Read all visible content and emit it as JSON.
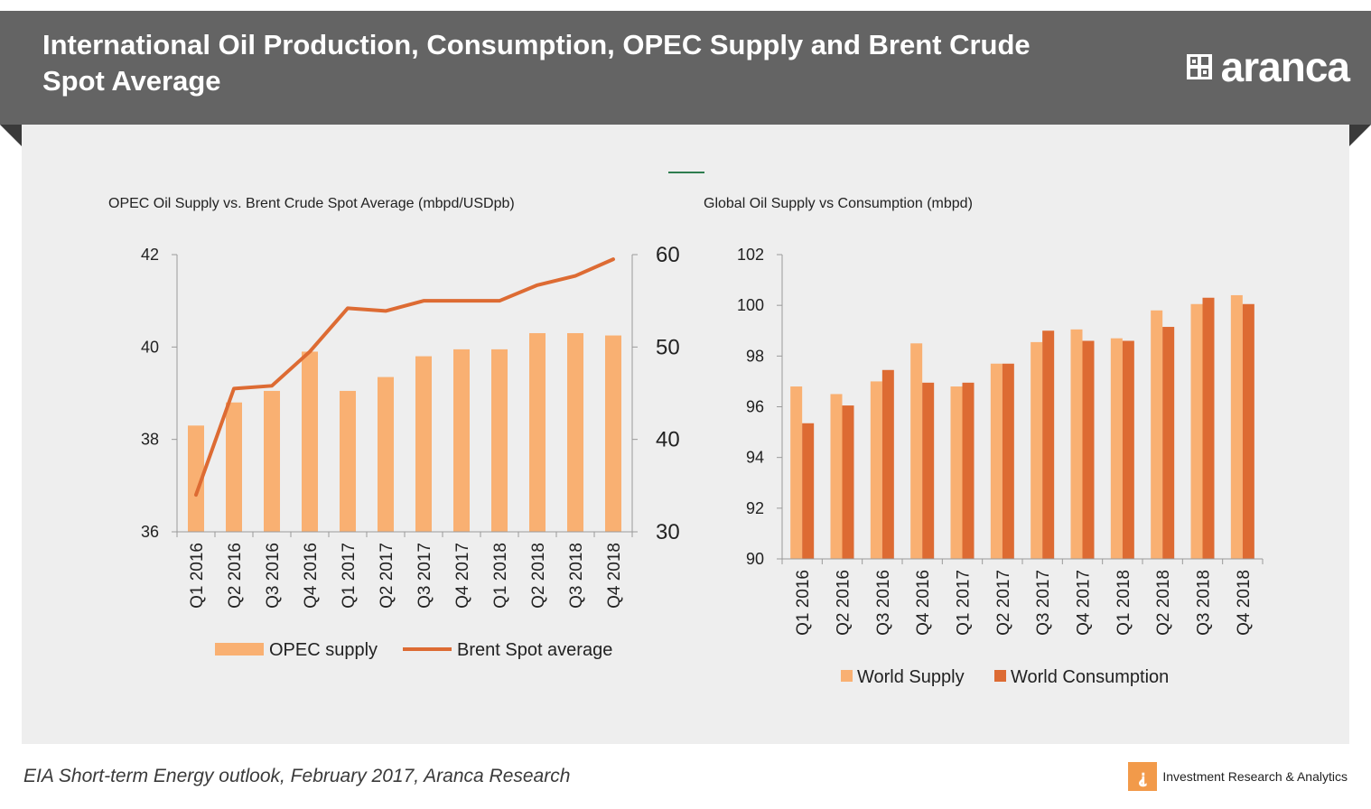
{
  "header": {
    "title": "International Oil Production, Consumption, OPEC Supply and Brent Crude Spot Average",
    "logo_text": "aranca"
  },
  "footer": {
    "source": "EIA Short-term Energy outlook, February 2017, Aranca Research",
    "brand_tagline": "Investment Research & Analytics"
  },
  "colors": {
    "bar_light": "#f9b072",
    "bar_dark": "#dd6b33",
    "line": "#dd6b33",
    "axis": "#9a9a9a"
  },
  "chart_data": [
    {
      "type": "bar",
      "title": "OPEC Oil Supply vs. Brent Crude Spot Average  (mbpd/USDpb)",
      "categories": [
        "Q1 2016",
        "Q2 2016",
        "Q3 2016",
        "Q4 2016",
        "Q1 2017",
        "Q2 2017",
        "Q3 2017",
        "Q4 2017",
        "Q1 2018",
        "Q2 2018",
        "Q3 2018",
        "Q4 2018"
      ],
      "series": [
        {
          "name": "OPEC supply",
          "type": "bar",
          "axis": "left",
          "values": [
            38.3,
            38.8,
            39.05,
            39.9,
            39.05,
            39.35,
            39.8,
            39.95,
            39.95,
            40.3,
            40.3,
            40.25
          ]
        },
        {
          "name": "Brent Spot average",
          "type": "line",
          "axis": "right",
          "values": [
            34,
            45.5,
            45.8,
            49.5,
            54.2,
            53.9,
            55,
            55,
            55,
            56.7,
            57.7,
            59.5
          ]
        }
      ],
      "ylim_left": [
        36,
        42
      ],
      "yticks_left": [
        36,
        38,
        40,
        42
      ],
      "ylim_right": [
        30,
        60
      ],
      "yticks_right": [
        30,
        40,
        50,
        60
      ],
      "legend": "bottom"
    },
    {
      "type": "bar",
      "title": "Global Oil Supply vs Consumption (mbpd)",
      "categories": [
        "Q1 2016",
        "Q2 2016",
        "Q3 2016",
        "Q4 2016",
        "Q1 2017",
        "Q2 2017",
        "Q3 2017",
        "Q4 2017",
        "Q1 2018",
        "Q2 2018",
        "Q3 2018",
        "Q4 2018"
      ],
      "series": [
        {
          "name": "World Supply",
          "values": [
            96.8,
            96.5,
            97.0,
            98.5,
            96.8,
            97.7,
            98.55,
            99.05,
            98.7,
            99.8,
            100.05,
            100.4
          ]
        },
        {
          "name": "World Consumption",
          "values": [
            95.35,
            96.05,
            97.45,
            96.95,
            96.95,
            97.7,
            99.0,
            98.6,
            98.6,
            99.15,
            100.3,
            100.05
          ]
        }
      ],
      "ylim": [
        90,
        102
      ],
      "yticks": [
        90,
        92,
        94,
        96,
        98,
        100,
        102
      ],
      "legend": "bottom"
    }
  ]
}
